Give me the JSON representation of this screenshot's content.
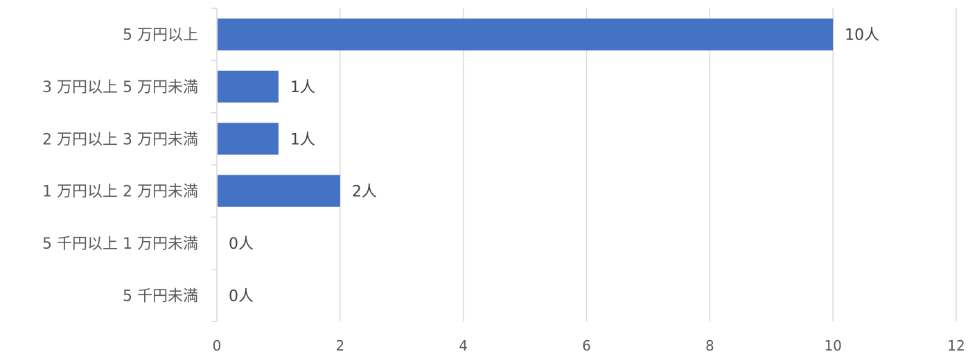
{
  "chart_data": {
    "type": "bar",
    "orientation": "horizontal",
    "categories": [
      "5 万円以上",
      "3 万円以上 5 万円未満",
      "2 万円以上 3 万円未満",
      "1 万円以上 2 万円未満",
      "5 千円以上 1 万円未満",
      "5 千円未満"
    ],
    "values": [
      10,
      1,
      1,
      2,
      0,
      0
    ],
    "data_labels": [
      "10人",
      "1人",
      "1人",
      "2人",
      "0人",
      "0人"
    ],
    "xlim": [
      0,
      12
    ],
    "x_ticks": [
      0,
      2,
      4,
      6,
      8,
      10,
      12
    ],
    "grid": true,
    "legend": "none",
    "bar_color": "#4472c4",
    "grid_color": "#d9d9d9"
  }
}
